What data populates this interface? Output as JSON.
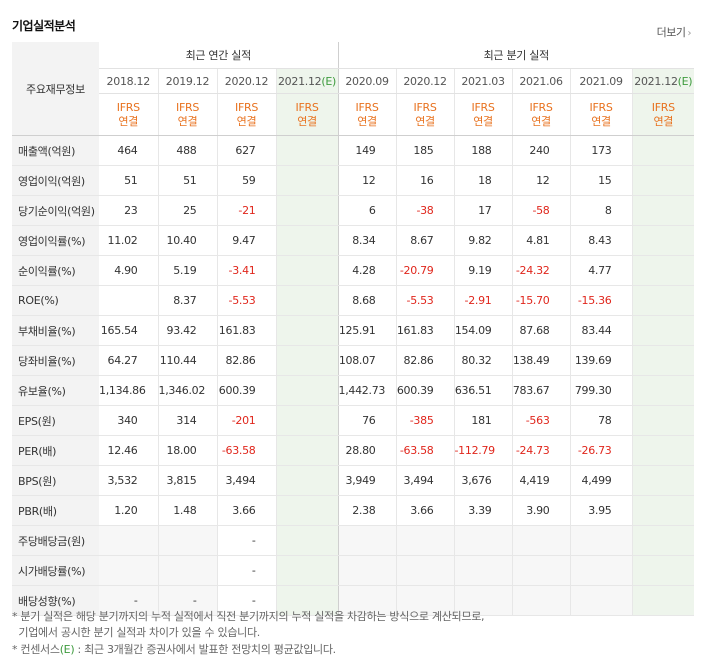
{
  "title": "기업실적분석",
  "more_label": "더보기",
  "group_annual": "최근 연간 실적",
  "group_quarter": "최근 분기 실적",
  "row_header": "주요재무정보",
  "ifrs_top": "IFRS",
  "ifrs_bottom": "연결",
  "estimate_mark": "(E)",
  "dates": [
    "2018.12",
    "2019.12",
    "2020.12",
    "2021.12",
    "2020.09",
    "2020.12",
    "2021.03",
    "2021.06",
    "2021.09",
    "2021.12"
  ],
  "rows": [
    {
      "label": "매출액(억원)",
      "values": [
        "464",
        "488",
        "627",
        "",
        "149",
        "185",
        "188",
        "240",
        "173",
        ""
      ]
    },
    {
      "label": "영업이익(억원)",
      "values": [
        "51",
        "51",
        "59",
        "",
        "12",
        "16",
        "18",
        "12",
        "15",
        ""
      ]
    },
    {
      "label": "당기순이익(억원)",
      "values": [
        "23",
        "25",
        "-21",
        "",
        "6",
        "-38",
        "17",
        "-58",
        "8",
        ""
      ]
    },
    {
      "label": "영업이익률(%)",
      "values": [
        "11.02",
        "10.40",
        "9.47",
        "",
        "8.34",
        "8.67",
        "9.82",
        "4.81",
        "8.43",
        ""
      ]
    },
    {
      "label": "순이익률(%)",
      "values": [
        "4.90",
        "5.19",
        "-3.41",
        "",
        "4.28",
        "-20.79",
        "9.19",
        "-24.32",
        "4.77",
        ""
      ]
    },
    {
      "label": "ROE(%)",
      "values": [
        "",
        "8.37",
        "-5.53",
        "",
        "8.68",
        "-5.53",
        "-2.91",
        "-15.70",
        "-15.36",
        ""
      ]
    },
    {
      "label": "부채비율(%)",
      "values": [
        "165.54",
        "93.42",
        "161.83",
        "",
        "125.91",
        "161.83",
        "154.09",
        "87.68",
        "83.44",
        ""
      ]
    },
    {
      "label": "당좌비율(%)",
      "values": [
        "64.27",
        "110.44",
        "82.86",
        "",
        "108.07",
        "82.86",
        "80.32",
        "138.49",
        "139.69",
        ""
      ]
    },
    {
      "label": "유보율(%)",
      "values": [
        "1,134.86",
        "1,346.02",
        "600.39",
        "",
        "1,442.73",
        "600.39",
        "636.51",
        "783.67",
        "799.30",
        ""
      ]
    },
    {
      "label": "EPS(원)",
      "values": [
        "340",
        "314",
        "-201",
        "",
        "76",
        "-385",
        "181",
        "-563",
        "78",
        ""
      ]
    },
    {
      "label": "PER(배)",
      "values": [
        "12.46",
        "18.00",
        "-63.58",
        "",
        "28.80",
        "-63.58",
        "-112.79",
        "-24.73",
        "-26.73",
        ""
      ]
    },
    {
      "label": "BPS(원)",
      "values": [
        "3,532",
        "3,815",
        "3,494",
        "",
        "3,949",
        "3,494",
        "3,676",
        "4,419",
        "4,499",
        ""
      ]
    },
    {
      "label": "PBR(배)",
      "values": [
        "1.20",
        "1.48",
        "3.66",
        "",
        "2.38",
        "3.66",
        "3.39",
        "3.90",
        "3.95",
        ""
      ]
    },
    {
      "label": "주당배당금(원)",
      "values": [
        "",
        "",
        "-",
        "",
        "",
        "",
        "",
        "",
        "",
        ""
      ]
    },
    {
      "label": "시가배당률(%)",
      "values": [
        "",
        "",
        "-",
        "",
        "",
        "",
        "",
        "",
        "",
        ""
      ]
    },
    {
      "label": "배당성향(%)",
      "values": [
        "-",
        "-",
        "-",
        "",
        "",
        "",
        "",
        "",
        "",
        ""
      ]
    }
  ],
  "footnotes": [
    "* 분기 실적은 해당 분기까지의 누적 실적에서 직전 분기까지의 누적 실적을 차감하는 방식으로 계산되므로,",
    "  기업에서 공시한 분기 실적과 차이가 있을 수 있습니다.",
    "* 컨센서스(E) : 최근 3개월간 증권사에서 발표한 전망치의 평균값입니다."
  ],
  "colors": {
    "negative": "#e0261c",
    "ifrs": "#e8721f",
    "estimate_bg": "#eef5ec",
    "estimate_mark": "#3e9b3e"
  }
}
